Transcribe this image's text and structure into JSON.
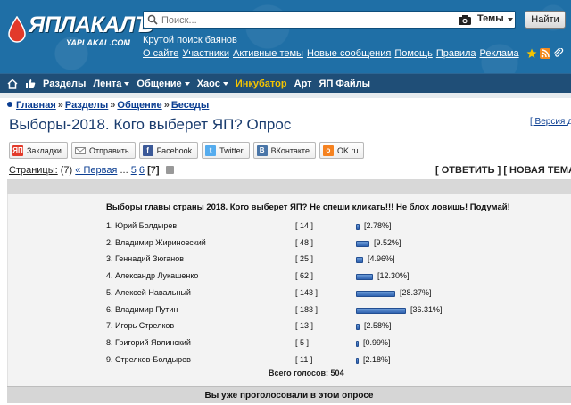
{
  "header": {
    "logo_text": "ЯПЛАКАЛЪ",
    "logo_sub": "YAPLAKAL.COM",
    "search_placeholder": "Поиск...",
    "search_scope": "Темы",
    "find_button": "Найти",
    "tagline": "Крутой поиск баянов",
    "links": [
      "О сайте",
      "Участники",
      "Активные темы",
      "Новые сообщения",
      "Помощь",
      "Правила",
      "Реклама"
    ]
  },
  "nav": {
    "items": [
      {
        "label": "Разделы",
        "caret": false
      },
      {
        "label": "Лента",
        "caret": true
      },
      {
        "label": "Общение",
        "caret": true
      },
      {
        "label": "Хаос",
        "caret": true
      },
      {
        "label": "Инкубатор",
        "caret": false
      },
      {
        "label": "Арт",
        "caret": false
      },
      {
        "label": "ЯП Файлы",
        "caret": false
      }
    ]
  },
  "breadcrumb": [
    "Главная",
    "Разделы",
    "Общение",
    "Беседы"
  ],
  "page_title": "Выборы-2018. Кого выберет ЯП? Опрос",
  "print_link": "[ Версия дл",
  "share": [
    {
      "label": "Закладки",
      "icon": "bookmark-icon",
      "color": "#e23a2a"
    },
    {
      "label": "Отправить",
      "icon": "mail-icon",
      "color": "#888888"
    },
    {
      "label": "Facebook",
      "icon": "facebook-icon",
      "color": "#3b5998"
    },
    {
      "label": "Twitter",
      "icon": "twitter-icon",
      "color": "#55acee"
    },
    {
      "label": "ВКонтакте",
      "icon": "vk-icon",
      "color": "#4a76a8"
    },
    {
      "label": "OK.ru",
      "icon": "ok-icon",
      "color": "#f58220"
    }
  ],
  "pagination": {
    "label": "Страницы:",
    "total": "(7)",
    "first": "« Первая",
    "ellipsis": "...",
    "pages": [
      "5",
      "6"
    ],
    "current": "[7]"
  },
  "actions": {
    "reply": "[ ОТВЕТИТЬ ]",
    "new_topic": "[ НОВАЯ ТЕМА ]",
    "tail": "["
  },
  "poll": {
    "question": "Выборы главы страны 2018. Кого выберет ЯП? Не спеши кликать!!! Не блох ловишь! Подумай!",
    "options": [
      {
        "name": "1. Юрий Болдырев",
        "count": "[ 14 ]",
        "percent": "[2.78%]",
        "value": 2.78
      },
      {
        "name": "2. Владимир Жириновский",
        "count": "[ 48 ]",
        "percent": "[9.52%]",
        "value": 9.52
      },
      {
        "name": "3. Геннадий Зюганов",
        "count": "[ 25 ]",
        "percent": "[4.96%]",
        "value": 4.96
      },
      {
        "name": "4. Александр Лукашенко",
        "count": "[ 62 ]",
        "percent": "[12.30%]",
        "value": 12.3
      },
      {
        "name": "5. Алексей Навальный",
        "count": "[ 143 ]",
        "percent": "[28.37%]",
        "value": 28.37
      },
      {
        "name": "6. Владимир Путин",
        "count": "[ 183 ]",
        "percent": "[36.31%]",
        "value": 36.31
      },
      {
        "name": "7. Игорь Стрелков",
        "count": "[ 13 ]",
        "percent": "[2.58%]",
        "value": 2.58
      },
      {
        "name": "8. Григорий Явлинский",
        "count": "[ 5 ]",
        "percent": "[0.99%]",
        "value": 0.99
      },
      {
        "name": "9. Стрелков-Болдырев",
        "count": "[ 11 ]",
        "percent": "[2.18%]",
        "value": 2.18
      }
    ],
    "total": "Всего голосов: 504",
    "voted_msg": "Вы уже проголосовали в этом опросе"
  }
}
